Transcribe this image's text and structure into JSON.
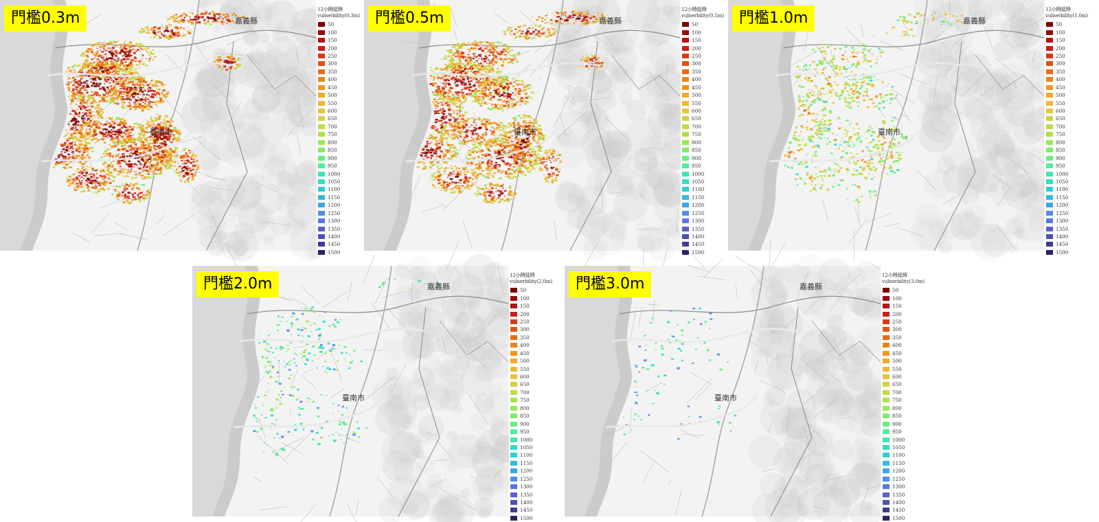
{
  "legend": {
    "title_line1": "12小時延時",
    "classes": [
      "50",
      "100",
      "150",
      "200",
      "250",
      "300",
      "350",
      "400",
      "450",
      "500",
      "550",
      "600",
      "650",
      "700",
      "750",
      "800",
      "850",
      "900",
      "950",
      "1000",
      "1050",
      "1100",
      "1150",
      "1200",
      "1250",
      "1300",
      "1350",
      "1400",
      "1450",
      "1500"
    ],
    "colors": [
      "#7f0000",
      "#9b0a0a",
      "#b51414",
      "#c81e1e",
      "#d83a12",
      "#e5510f",
      "#ea6a12",
      "#ef8217",
      "#f2951d",
      "#f5a828",
      "#f2b632",
      "#e9c33b",
      "#d8cf3f",
      "#c3da44",
      "#aee24a",
      "#98e85a",
      "#80ec6a",
      "#69ee80",
      "#52ee98",
      "#3ee8b0",
      "#2fdfc4",
      "#2dcfd4",
      "#32bce0",
      "#3ea6e6",
      "#4c8fe8",
      "#5a78e2",
      "#5962c8",
      "#4e4fae",
      "#3f3b8e",
      "#2c2464"
    ],
    "ramp": [
      "#7f0000",
      "#c81e1e",
      "#e5510f",
      "#f2951d",
      "#e9c33b",
      "#aee24a",
      "#69ee80",
      "#2fdfc4",
      "#4c8fe8"
    ]
  },
  "places": {
    "chiayi": "嘉義縣",
    "tainan": "臺南市"
  },
  "panels": [
    {
      "label": "門檻0.3m",
      "vuln": "vulnerbility(0.3m)",
      "density": 1.0
    },
    {
      "label": "門檻0.5m",
      "vuln": "vulnerbility(0.5m)",
      "density": 0.95
    },
    {
      "label": "門檻1.0m",
      "vuln": "vulnerbility(1.0m)",
      "density": 0.55
    },
    {
      "label": "門檻2.0m",
      "vuln": "vulnerbility(2.0m)",
      "density": 0.22
    },
    {
      "label": "門檻3.0m",
      "vuln": "vulnerbility(3.0m)",
      "density": 0.1
    }
  ]
}
